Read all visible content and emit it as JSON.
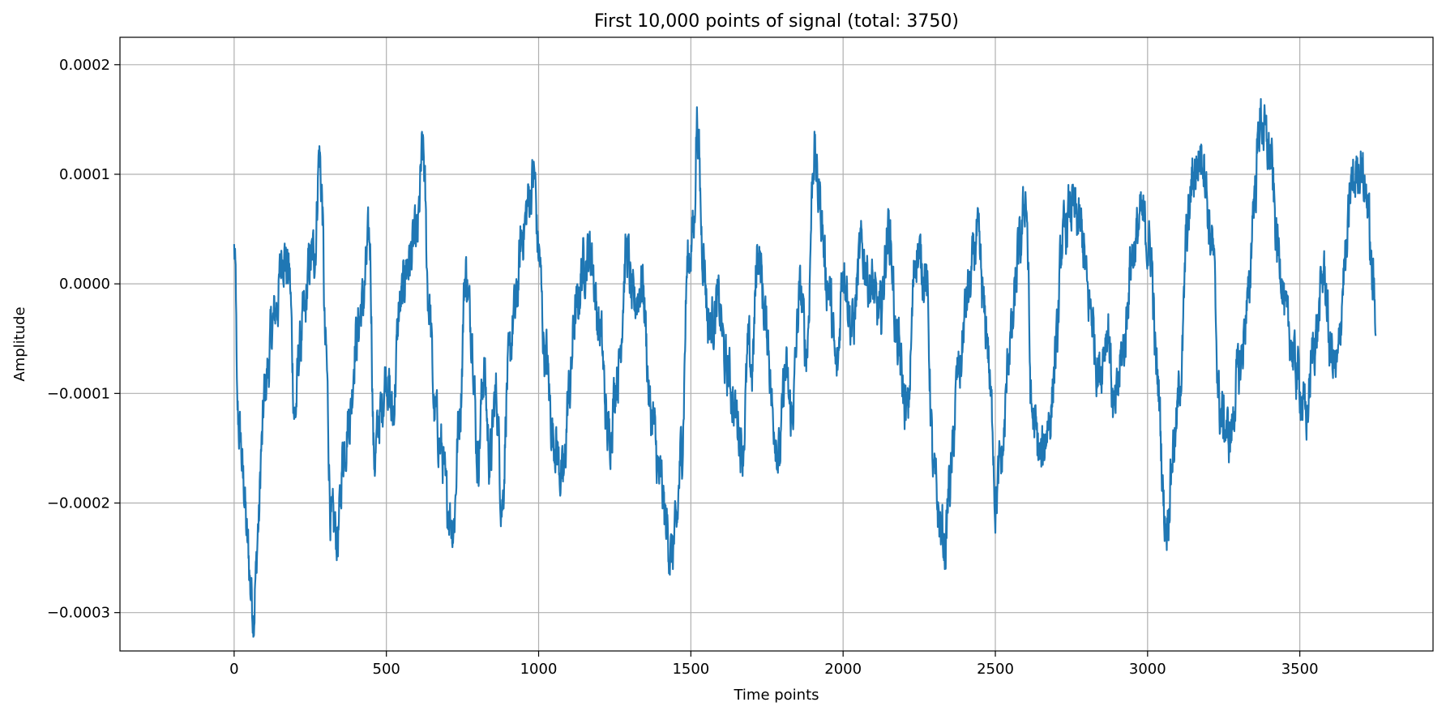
{
  "chart_data": {
    "type": "line",
    "title": "First 10,000 points of signal (total: 3750)",
    "xlabel": "Time points",
    "ylabel": "Amplitude",
    "xlim": [
      -375,
      3937.5
    ],
    "ylim": [
      -0.000335,
      0.000225
    ],
    "x_ticks": [
      0,
      500,
      1000,
      1500,
      2000,
      2500,
      3000,
      3500
    ],
    "x_tick_labels": [
      "0",
      "500",
      "1000",
      "1500",
      "2000",
      "2500",
      "3000",
      "3500"
    ],
    "y_ticks": [
      0.0002,
      0.0001,
      0.0,
      -0.0001,
      -0.0002,
      -0.0003
    ],
    "y_tick_labels": [
      "0.0002",
      "0.0001",
      "0.0000",
      "−0.0001",
      "−0.0002",
      "−0.0003"
    ],
    "grid": true,
    "series": [
      {
        "color": "#1f77b4",
        "n_points": 3750,
        "anchor_x": [
          0,
          5,
          10,
          20,
          30,
          45,
          55,
          65,
          70,
          80,
          90,
          100,
          110,
          125,
          140,
          160,
          180,
          200,
          215,
          230,
          250,
          265,
          280,
          288,
          300,
          320,
          340,
          360,
          380,
          400,
          420,
          445,
          460,
          480,
          500,
          520,
          545,
          570,
          600,
          620,
          640,
          660,
          680,
          700,
          720,
          740,
          760,
          780,
          800,
          820,
          840,
          860,
          880,
          900,
          920,
          950,
          970,
          985,
          1000,
          1020,
          1050,
          1080,
          1100,
          1120,
          1150,
          1170,
          1200,
          1230,
          1260,
          1290,
          1310,
          1340,
          1370,
          1400,
          1420,
          1435,
          1450,
          1470,
          1490,
          1510,
          1520,
          1540,
          1560,
          1590,
          1620,
          1650,
          1670,
          1690,
          1700,
          1720,
          1750,
          1770,
          1790,
          1810,
          1830,
          1860,
          1880,
          1905,
          1920,
          1950,
          1980,
          2000,
          2030,
          2060,
          2090,
          2120,
          2150,
          2180,
          2210,
          2240,
          2270,
          2300,
          2320,
          2335,
          2350,
          2380,
          2410,
          2440,
          2470,
          2490,
          2500,
          2520,
          2550,
          2580,
          2600,
          2620,
          2650,
          2680,
          2700,
          2720,
          2750,
          2780,
          2810,
          2840,
          2870,
          2890,
          2920,
          2950,
          2980,
          3010,
          3030,
          3060,
          3090,
          3110,
          3130,
          3150,
          3180,
          3210,
          3240,
          3270,
          3300,
          3330,
          3350,
          3370,
          3400,
          3430,
          3460,
          3490,
          3520,
          3550,
          3580,
          3600,
          3620,
          3650,
          3670,
          3700,
          3720,
          3740,
          3749
        ],
        "anchor_y": [
          3e-05,
          0.0,
          -0.00012,
          -0.00014,
          -0.00018,
          -0.00024,
          -0.00028,
          -0.0003,
          -0.00027,
          -0.00022,
          -0.00015,
          -0.0001,
          -8e-05,
          -4e-05,
          -2e-05,
          3e-05,
          1e-05,
          -0.00012,
          -6e-05,
          -3e-05,
          2e-05,
          3e-05,
          0.00012,
          8e-05,
          -6e-05,
          -0.00022,
          -0.00023,
          -0.00015,
          -0.00012,
          -5e-05,
          -2e-05,
          4e-05,
          -0.00016,
          -0.00012,
          -8e-05,
          -0.00012,
          -2e-05,
          2e-05,
          4e-05,
          0.00012,
          -2e-05,
          -0.00012,
          -0.00015,
          -0.0002,
          -0.00022,
          -0.00012,
          1e-05,
          -4e-05,
          -0.00016,
          -8e-05,
          -0.00016,
          -0.0001,
          -0.0002,
          -8e-05,
          -3e-05,
          5e-05,
          8e-05,
          0.0001,
          3e-05,
          -6e-05,
          -0.00014,
          -0.00018,
          -0.0001,
          -3e-05,
          2e-05,
          3e-05,
          -4e-05,
          -0.00014,
          -8e-05,
          3e-05,
          -2e-05,
          0.0,
          -0.00012,
          -0.00018,
          -0.00022,
          -0.00025,
          -0.00023,
          -0.00015,
          2e-05,
          5e-05,
          0.00015,
          3e-05,
          -4e-05,
          -2e-05,
          -8e-05,
          -0.00012,
          -0.00015,
          -6e-05,
          -8e-05,
          3e-05,
          -4e-05,
          -0.00012,
          -0.00016,
          -8e-05,
          -0.00012,
          -1e-05,
          -6e-05,
          0.00012,
          8e-05,
          0.0,
          -8e-05,
          2e-05,
          -4e-05,
          3e-05,
          0.0,
          -3e-05,
          5e-05,
          -6e-05,
          -0.00012,
          3e-05,
          1e-05,
          -0.00018,
          -0.00022,
          -0.00024,
          -0.00018,
          -8e-05,
          -1e-05,
          4e-05,
          -4e-05,
          -0.00012,
          -0.0002,
          -0.00016,
          -5e-05,
          3e-05,
          8e-05,
          -0.00012,
          -0.00016,
          -0.00012,
          -6e-05,
          4e-05,
          7e-05,
          5e-05,
          -2e-05,
          -8e-05,
          -4e-05,
          -0.00012,
          -6e-05,
          3e-05,
          6e-05,
          3e-05,
          -8e-05,
          -0.00022,
          -0.00014,
          -8e-05,
          5e-05,
          0.0001,
          0.00012,
          4e-05,
          -0.00012,
          -0.00014,
          -8e-05,
          -2e-05,
          8e-05,
          0.00015,
          0.00012,
          3e-05,
          -4e-05,
          -8e-05,
          -0.00012,
          -5e-05,
          1e-05,
          -6e-05,
          -8e-05,
          2e-05,
          9e-05,
          0.00011,
          8e-05,
          0.0,
          -2e-05
        ]
      }
    ]
  }
}
